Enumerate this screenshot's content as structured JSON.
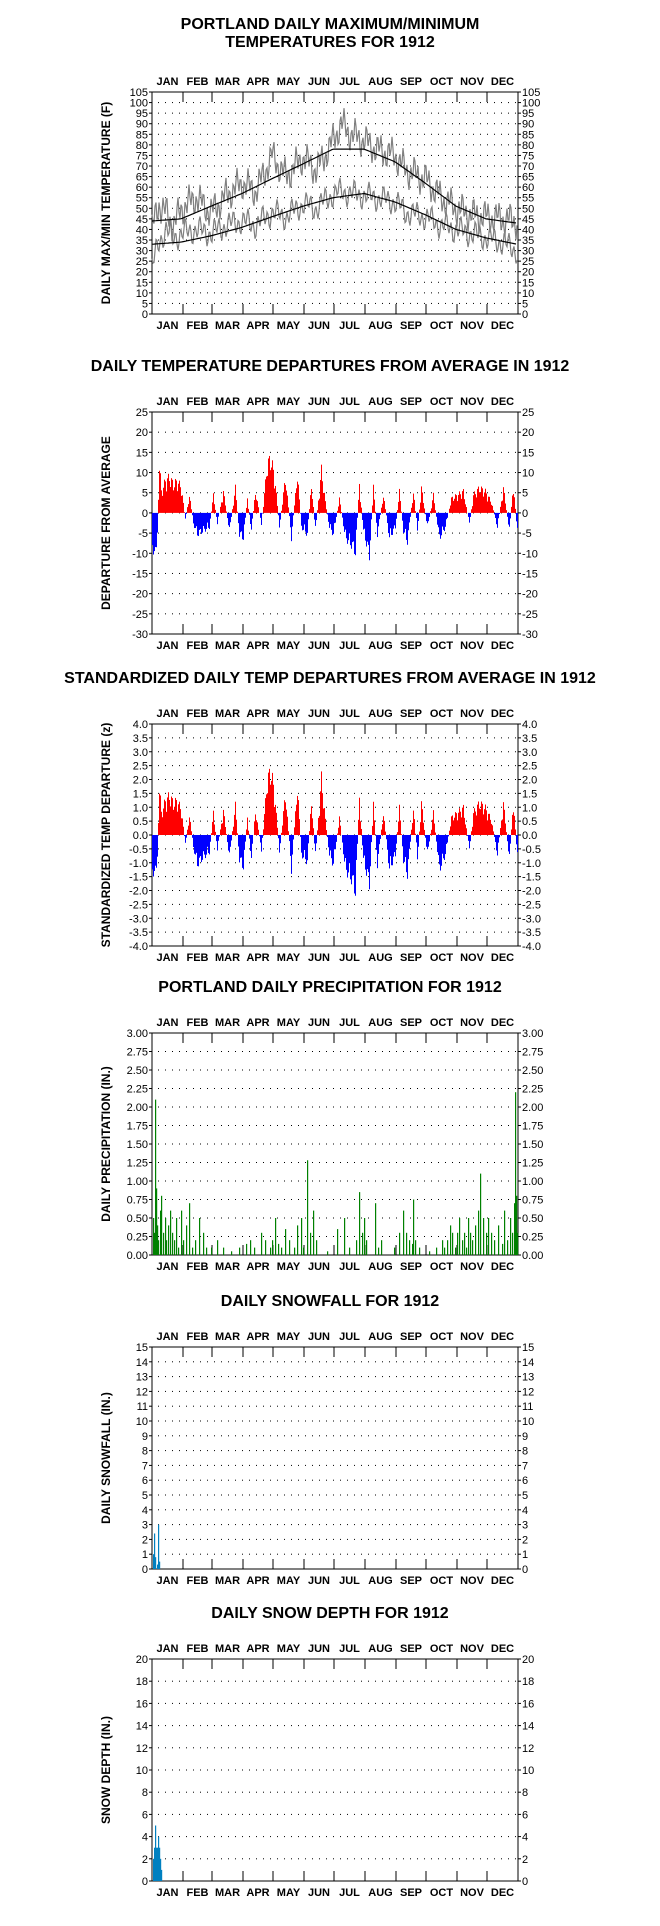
{
  "months": [
    "JAN",
    "FEB",
    "MAR",
    "APR",
    "MAY",
    "JUN",
    "JUL",
    "AUG",
    "SEP",
    "OCT",
    "NOV",
    "DEC"
  ],
  "colors": {
    "above": "#ff0000",
    "below": "#0000ff",
    "precip": "#008000",
    "snow": "#0080c0",
    "daily_line": "#808080",
    "normal_line": "#000000"
  },
  "chart_data": [
    {
      "id": "temps",
      "type": "line",
      "title": "PORTLAND DAILY MAXIMUM/MINIMUM\nTEMPERATURES FOR 1912",
      "ylabel": "DAILY MAX/MIN TEMPERATURE (F)",
      "ylim": [
        0,
        105
      ],
      "ystep": 5,
      "grid": true,
      "normal_max_keypoints": [
        [
          1,
          44
        ],
        [
          30,
          45
        ],
        [
          60,
          51
        ],
        [
          91,
          57
        ],
        [
          121,
          64
        ],
        [
          152,
          71
        ],
        [
          182,
          78
        ],
        [
          213,
          78
        ],
        [
          244,
          72
        ],
        [
          274,
          62
        ],
        [
          305,
          51
        ],
        [
          335,
          45
        ],
        [
          366,
          43
        ]
      ],
      "normal_min_keypoints": [
        [
          1,
          33
        ],
        [
          30,
          34
        ],
        [
          60,
          37
        ],
        [
          91,
          41
        ],
        [
          121,
          46
        ],
        [
          152,
          51
        ],
        [
          182,
          55
        ],
        [
          213,
          57
        ],
        [
          244,
          53
        ],
        [
          274,
          47
        ],
        [
          305,
          40
        ],
        [
          335,
          36
        ],
        [
          366,
          33
        ]
      ],
      "daily_max_keypoints": [
        [
          1,
          40
        ],
        [
          8,
          52
        ],
        [
          15,
          48
        ],
        [
          22,
          42
        ],
        [
          31,
          50
        ],
        [
          45,
          55
        ],
        [
          60,
          48
        ],
        [
          75,
          56
        ],
        [
          91,
          62
        ],
        [
          105,
          58
        ],
        [
          121,
          75
        ],
        [
          135,
          65
        ],
        [
          152,
          74
        ],
        [
          165,
          68
        ],
        [
          180,
          80
        ],
        [
          190,
          90
        ],
        [
          200,
          85
        ],
        [
          213,
          82
        ],
        [
          225,
          78
        ],
        [
          244,
          75
        ],
        [
          255,
          68
        ],
        [
          274,
          64
        ],
        [
          290,
          55
        ],
        [
          305,
          50
        ],
        [
          320,
          47
        ],
        [
          335,
          46
        ],
        [
          350,
          45
        ],
        [
          366,
          44
        ]
      ],
      "daily_min_keypoints": [
        [
          1,
          22
        ],
        [
          8,
          34
        ],
        [
          15,
          40
        ],
        [
          22,
          36
        ],
        [
          31,
          38
        ],
        [
          45,
          40
        ],
        [
          60,
          38
        ],
        [
          75,
          42
        ],
        [
          91,
          44
        ],
        [
          105,
          42
        ],
        [
          121,
          48
        ],
        [
          135,
          46
        ],
        [
          152,
          52
        ],
        [
          165,
          50
        ],
        [
          180,
          56
        ],
        [
          190,
          58
        ],
        [
          200,
          57
        ],
        [
          213,
          56
        ],
        [
          225,
          55
        ],
        [
          244,
          53
        ],
        [
          255,
          48
        ],
        [
          274,
          46
        ],
        [
          290,
          42
        ],
        [
          305,
          40
        ],
        [
          320,
          38
        ],
        [
          335,
          36
        ],
        [
          350,
          34
        ],
        [
          366,
          30
        ]
      ]
    },
    {
      "id": "departures",
      "type": "bar",
      "title": "DAILY TEMPERATURE DEPARTURES FROM AVERAGE IN 1912",
      "ylabel": "DEPARTURE FROM AVERAGE",
      "ylim": [
        -30,
        25
      ],
      "ystep": 5,
      "grid": true,
      "keypoints": [
        [
          1,
          -9
        ],
        [
          4,
          -13
        ],
        [
          6,
          -5
        ],
        [
          8,
          14
        ],
        [
          10,
          6
        ],
        [
          14,
          9
        ],
        [
          18,
          10
        ],
        [
          22,
          8
        ],
        [
          26,
          9
        ],
        [
          30,
          7
        ],
        [
          34,
          -2
        ],
        [
          38,
          5
        ],
        [
          42,
          -3
        ],
        [
          46,
          -6
        ],
        [
          52,
          -5
        ],
        [
          58,
          -4
        ],
        [
          62,
          5
        ],
        [
          66,
          -3
        ],
        [
          72,
          6
        ],
        [
          78,
          -5
        ],
        [
          84,
          7
        ],
        [
          88,
          -6
        ],
        [
          92,
          -7
        ],
        [
          96,
          4
        ],
        [
          100,
          -5
        ],
        [
          104,
          6
        ],
        [
          110,
          -3
        ],
        [
          116,
          14
        ],
        [
          120,
          15
        ],
        [
          124,
          8
        ],
        [
          128,
          -4
        ],
        [
          134,
          10
        ],
        [
          140,
          -7
        ],
        [
          146,
          11
        ],
        [
          150,
          -4
        ],
        [
          156,
          -6
        ],
        [
          160,
          8
        ],
        [
          164,
          -5
        ],
        [
          170,
          12
        ],
        [
          174,
          3
        ],
        [
          178,
          -4
        ],
        [
          182,
          -6
        ],
        [
          188,
          4
        ],
        [
          194,
          -7
        ],
        [
          200,
          -9
        ],
        [
          204,
          -11
        ],
        [
          208,
          8
        ],
        [
          212,
          -5
        ],
        [
          218,
          -12
        ],
        [
          222,
          7
        ],
        [
          226,
          -6
        ],
        [
          232,
          5
        ],
        [
          238,
          -7
        ],
        [
          244,
          -4
        ],
        [
          248,
          6
        ],
        [
          252,
          -5
        ],
        [
          256,
          -8
        ],
        [
          262,
          6
        ],
        [
          266,
          -5
        ],
        [
          270,
          7
        ],
        [
          276,
          -4
        ],
        [
          282,
          5
        ],
        [
          288,
          -7
        ],
        [
          294,
          -4
        ],
        [
          300,
          4
        ],
        [
          306,
          5
        ],
        [
          312,
          6
        ],
        [
          318,
          -3
        ],
        [
          322,
          5
        ],
        [
          328,
          7
        ],
        [
          334,
          6
        ],
        [
          340,
          3
        ],
        [
          346,
          -4
        ],
        [
          352,
          7
        ],
        [
          358,
          -5
        ],
        [
          362,
          8
        ],
        [
          366,
          -6
        ]
      ]
    },
    {
      "id": "standardized",
      "type": "bar",
      "title": "STANDARDIZED DAILY TEMP DEPARTURES FROM AVERAGE IN 1912",
      "ylabel": "STANDARDIZED TEMP DEPARTURE (z)",
      "ylim": [
        -4.0,
        4.0
      ],
      "ystep": 0.5,
      "decimals": 1,
      "grid": true,
      "keypoints": [
        [
          1,
          -1.4
        ],
        [
          4,
          -1.7
        ],
        [
          6,
          -0.8
        ],
        [
          8,
          2.0
        ],
        [
          10,
          0.9
        ],
        [
          14,
          1.4
        ],
        [
          18,
          1.6
        ],
        [
          22,
          1.3
        ],
        [
          26,
          1.4
        ],
        [
          30,
          1.0
        ],
        [
          34,
          -0.4
        ],
        [
          38,
          0.8
        ],
        [
          42,
          -0.5
        ],
        [
          46,
          -1.2
        ],
        [
          52,
          -0.9
        ],
        [
          58,
          -0.7
        ],
        [
          62,
          0.9
        ],
        [
          66,
          -0.6
        ],
        [
          72,
          1.0
        ],
        [
          78,
          -0.9
        ],
        [
          84,
          1.2
        ],
        [
          88,
          -1.0
        ],
        [
          92,
          -1.3
        ],
        [
          96,
          0.7
        ],
        [
          100,
          -1.0
        ],
        [
          104,
          1.0
        ],
        [
          110,
          -0.6
        ],
        [
          116,
          2.3
        ],
        [
          120,
          2.6
        ],
        [
          124,
          1.3
        ],
        [
          128,
          -0.7
        ],
        [
          134,
          1.7
        ],
        [
          140,
          -1.4
        ],
        [
          146,
          2.0
        ],
        [
          150,
          -0.8
        ],
        [
          156,
          -1.1
        ],
        [
          160,
          1.4
        ],
        [
          164,
          -0.9
        ],
        [
          170,
          2.3
        ],
        [
          174,
          0.6
        ],
        [
          178,
          -0.8
        ],
        [
          182,
          -1.2
        ],
        [
          188,
          0.7
        ],
        [
          194,
          -1.4
        ],
        [
          200,
          -1.8
        ],
        [
          204,
          -2.3
        ],
        [
          208,
          1.5
        ],
        [
          212,
          -1.0
        ],
        [
          218,
          -2.0
        ],
        [
          222,
          1.2
        ],
        [
          226,
          -1.2
        ],
        [
          232,
          0.9
        ],
        [
          238,
          -1.4
        ],
        [
          244,
          -0.8
        ],
        [
          248,
          1.1
        ],
        [
          252,
          -1.0
        ],
        [
          256,
          -1.6
        ],
        [
          262,
          1.1
        ],
        [
          266,
          -1.0
        ],
        [
          270,
          1.3
        ],
        [
          276,
          -0.8
        ],
        [
          282,
          0.9
        ],
        [
          288,
          -1.4
        ],
        [
          294,
          -0.8
        ],
        [
          300,
          0.7
        ],
        [
          306,
          0.9
        ],
        [
          312,
          1.1
        ],
        [
          318,
          -0.6
        ],
        [
          322,
          0.9
        ],
        [
          328,
          1.3
        ],
        [
          334,
          1.1
        ],
        [
          340,
          0.6
        ],
        [
          346,
          -0.8
        ],
        [
          352,
          1.3
        ],
        [
          358,
          -1.0
        ],
        [
          362,
          1.4
        ],
        [
          366,
          -1.0
        ]
      ]
    },
    {
      "id": "precip",
      "type": "bar",
      "title": "PORTLAND DAILY PRECIPITATION FOR 1912",
      "ylabel": "DAILY PRECIPITATION (IN.)",
      "ylim": [
        0,
        3.0
      ],
      "ystep": 0.25,
      "decimals": 2,
      "grid": true,
      "values": [
        [
          2,
          0.5
        ],
        [
          3,
          0.3
        ],
        [
          4,
          2.1
        ],
        [
          5,
          0.9
        ],
        [
          6,
          0.4
        ],
        [
          7,
          0.2
        ],
        [
          9,
          0.6
        ],
        [
          10,
          0.8
        ],
        [
          12,
          0.3
        ],
        [
          14,
          0.5
        ],
        [
          15,
          0.2
        ],
        [
          17,
          0.4
        ],
        [
          19,
          0.6
        ],
        [
          21,
          0.3
        ],
        [
          23,
          0.2
        ],
        [
          25,
          0.5
        ],
        [
          27,
          0.1
        ],
        [
          30,
          0.6
        ],
        [
          32,
          0.2
        ],
        [
          35,
          0.4
        ],
        [
          38,
          0.7
        ],
        [
          41,
          0.1
        ],
        [
          44,
          0.2
        ],
        [
          48,
          0.5
        ],
        [
          52,
          0.3
        ],
        [
          55,
          0.1
        ],
        [
          60,
          0.1
        ],
        [
          66,
          0.2
        ],
        [
          72,
          0.1
        ],
        [
          80,
          0.05
        ],
        [
          88,
          0.1
        ],
        [
          95,
          0.15
        ],
        [
          99,
          0.2
        ],
        [
          103,
          0.1
        ],
        [
          110,
          0.3
        ],
        [
          114,
          0.2
        ],
        [
          119,
          0.1
        ],
        [
          121,
          0.2
        ],
        [
          124,
          0.5
        ],
        [
          127,
          0.15
        ],
        [
          130,
          0.1
        ],
        [
          134,
          0.35
        ],
        [
          138,
          0.2
        ],
        [
          143,
          0.1
        ],
        [
          146,
          0.4
        ],
        [
          150,
          0.5
        ],
        [
          152,
          0.1
        ],
        [
          156,
          1.28
        ],
        [
          159,
          0.3
        ],
        [
          162,
          0.6
        ],
        [
          165,
          0.2
        ],
        [
          176,
          0.05
        ],
        [
          186,
          0.35
        ],
        [
          193,
          0.5
        ],
        [
          198,
          0.1
        ],
        [
          205,
          0.2
        ],
        [
          208,
          0.85
        ],
        [
          211,
          0.3
        ],
        [
          213,
          0.5
        ],
        [
          215,
          0.2
        ],
        [
          224,
          0.7
        ],
        [
          227,
          0.1
        ],
        [
          230,
          0.2
        ],
        [
          243,
          0.1
        ],
        [
          248,
          0.3
        ],
        [
          252,
          0.6
        ],
        [
          255,
          0.3
        ],
        [
          258,
          0.2
        ],
        [
          261,
          0.15
        ],
        [
          262,
          0.75
        ],
        [
          264,
          0.2
        ],
        [
          268,
          0.1
        ],
        [
          278,
          0.05
        ],
        [
          285,
          0.1
        ],
        [
          291,
          0.2
        ],
        [
          293,
          0.1
        ],
        [
          296,
          0.2
        ],
        [
          299,
          0.4
        ],
        [
          301,
          0.3
        ],
        [
          304,
          0.1
        ],
        [
          306,
          0.3
        ],
        [
          308,
          0.5
        ],
        [
          311,
          0.2
        ],
        [
          313,
          0.3
        ],
        [
          315,
          0.1
        ],
        [
          317,
          0.5
        ],
        [
          319,
          0.3
        ],
        [
          321,
          0.2
        ],
        [
          324,
          0.4
        ],
        [
          327,
          0.6
        ],
        [
          329,
          1.1
        ],
        [
          332,
          0.5
        ],
        [
          335,
          0.3
        ],
        [
          337,
          0.5
        ],
        [
          340,
          0.3
        ],
        [
          343,
          0.2
        ],
        [
          347,
          0.4
        ],
        [
          351,
          0.15
        ],
        [
          353,
          0.6
        ],
        [
          356,
          0.2
        ],
        [
          359,
          0.5
        ],
        [
          361,
          0.3
        ],
        [
          363,
          0.7
        ],
        [
          364,
          2.2
        ],
        [
          365,
          0.8
        ],
        [
          366,
          0.3
        ]
      ]
    },
    {
      "id": "snowfall",
      "type": "bar",
      "title": "DAILY SNOWFALL FOR 1912",
      "ylabel": "DAILY SNOWFALL (IN.)",
      "ylim": [
        0,
        15
      ],
      "ystep": 1,
      "grid": true,
      "values": [
        [
          2,
          1.0
        ],
        [
          3,
          2.4
        ],
        [
          4,
          0.8
        ],
        [
          6,
          0.3
        ],
        [
          7,
          3.0
        ],
        [
          8,
          0.5
        ]
      ]
    },
    {
      "id": "snowdepth",
      "type": "bar",
      "title": "DAILY SNOW DEPTH FOR 1912",
      "ylabel": "SNOW DEPTH (IN.)",
      "ylim": [
        0,
        20
      ],
      "ystep": 2,
      "grid": true,
      "values": [
        [
          2,
          2
        ],
        [
          3,
          3
        ],
        [
          4,
          5
        ],
        [
          5,
          3
        ],
        [
          6,
          3
        ],
        [
          7,
          4
        ],
        [
          8,
          3
        ],
        [
          9,
          2
        ],
        [
          10,
          1
        ]
      ]
    }
  ]
}
